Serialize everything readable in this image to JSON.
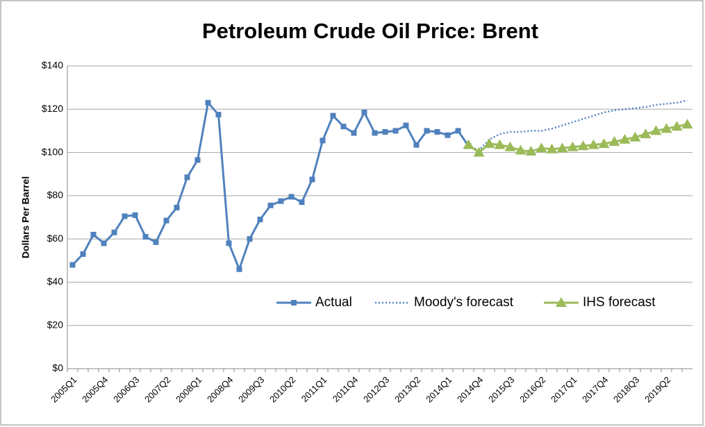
{
  "chart_data": {
    "type": "line",
    "title": "Petroleum Crude Oil Price: Brent",
    "y_label": "Dollars Per Barrel",
    "categories": [
      "2005Q1",
      null,
      null,
      "2005Q4",
      null,
      null,
      "2006Q3",
      null,
      null,
      "2007Q2",
      null,
      null,
      "2008Q1",
      null,
      null,
      "2008Q4",
      null,
      null,
      "2009Q3",
      null,
      null,
      "2010Q2",
      null,
      null,
      "2011Q1",
      null,
      null,
      "2011Q4",
      null,
      null,
      "2012Q3",
      null,
      null,
      "2013Q2",
      null,
      null,
      "2014Q1",
      null,
      null,
      "2014Q4",
      null,
      null,
      "2015Q3",
      null,
      null,
      "2016Q2",
      null,
      null,
      "2017Q1",
      null,
      null,
      "2017Q4",
      null,
      null,
      "2018Q3",
      null,
      null,
      "2019Q2",
      null,
      null
    ],
    "series": [
      {
        "name": "Actual",
        "color": "#4f81bd",
        "style": "solid",
        "marker": "square",
        "values": [
          48,
          53,
          62,
          58,
          63,
          70.5,
          71,
          61,
          58.5,
          68.5,
          74.5,
          88.5,
          96.5,
          123,
          117.5,
          58,
          46,
          60,
          69,
          75.5,
          77.5,
          79.5,
          77,
          87.5,
          105.5,
          117,
          112,
          109,
          118.5,
          109,
          109.5,
          110,
          112.5,
          103.5,
          110,
          109.5,
          108,
          110,
          103,
          null,
          null,
          null,
          null,
          null,
          null,
          null,
          null,
          null,
          null,
          null,
          null,
          null,
          null,
          null,
          null,
          null,
          null,
          null,
          null,
          null
        ]
      },
      {
        "name": "Moody's forecast",
        "color": "#4f81bd",
        "style": "dotted",
        "marker": "none",
        "values": [
          null,
          null,
          null,
          null,
          null,
          null,
          null,
          null,
          null,
          null,
          null,
          null,
          null,
          null,
          null,
          null,
          null,
          null,
          null,
          null,
          null,
          null,
          null,
          null,
          null,
          null,
          null,
          null,
          null,
          null,
          null,
          null,
          null,
          null,
          null,
          null,
          null,
          null,
          103,
          101,
          106,
          108.5,
          109.5,
          109.5,
          110,
          110,
          111,
          112.5,
          114,
          115.5,
          117,
          118.5,
          119.5,
          120,
          120.5,
          121,
          122,
          122.5,
          123,
          124
        ]
      },
      {
        "name": "IHS forecast",
        "color": "#9bbb59",
        "style": "solid",
        "marker": "triangle",
        "values": [
          null,
          null,
          null,
          null,
          null,
          null,
          null,
          null,
          null,
          null,
          null,
          null,
          null,
          null,
          null,
          null,
          null,
          null,
          null,
          null,
          null,
          null,
          null,
          null,
          null,
          null,
          null,
          null,
          null,
          null,
          null,
          null,
          null,
          null,
          null,
          null,
          null,
          null,
          103.5,
          100,
          104,
          103.5,
          102.5,
          101,
          100.5,
          102,
          101.5,
          102,
          102.5,
          103,
          103.5,
          104,
          105,
          106,
          107,
          108.5,
          110,
          111,
          112,
          113
        ]
      }
    ],
    "ylim": [
      0,
      140
    ],
    "yticks": [
      {
        "value": 0,
        "label": "$0"
      },
      {
        "value": 20,
        "label": "$20"
      },
      {
        "value": 40,
        "label": "$40"
      },
      {
        "value": 60,
        "label": "$60"
      },
      {
        "value": 80,
        "label": "$80"
      },
      {
        "value": 100,
        "label": "$100"
      },
      {
        "value": 120,
        "label": "$120"
      },
      {
        "value": 140,
        "label": "$140"
      }
    ],
    "grid": true,
    "legend": "inside-lower-right"
  }
}
